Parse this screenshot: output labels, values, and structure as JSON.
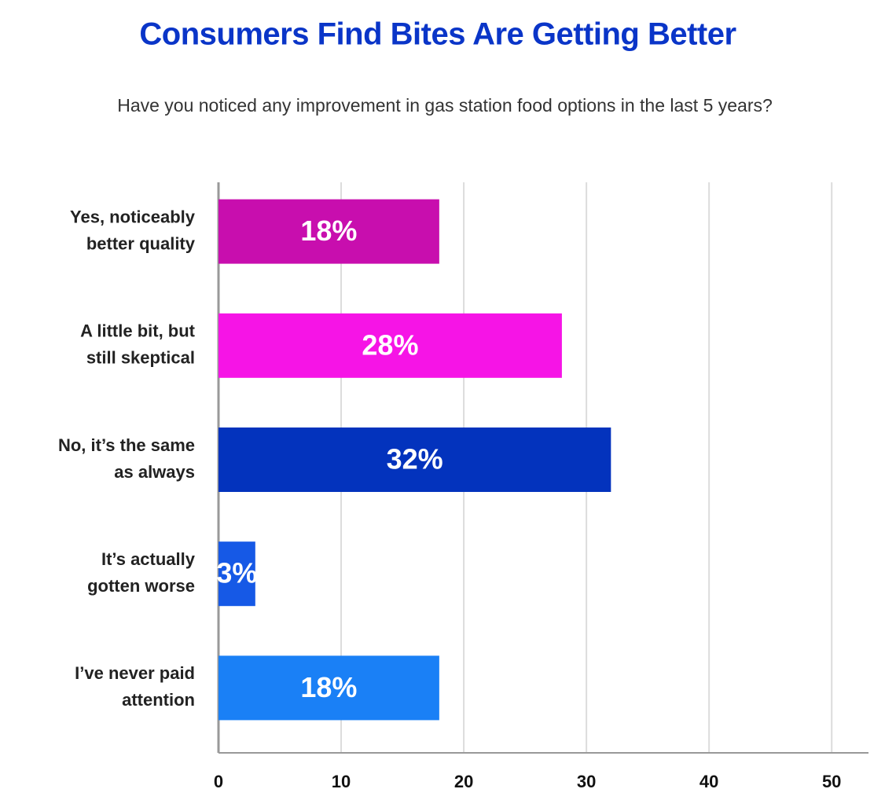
{
  "chart_data": {
    "type": "bar",
    "orientation": "horizontal",
    "title": "Consumers Find Bites Are Getting Better",
    "subtitle": "Have you noticed any improvement in gas station food options in the last 5 years?",
    "categories": [
      [
        "Yes, noticeably",
        "better quality"
      ],
      [
        "A little bit, but",
        "still skeptical"
      ],
      [
        "No, it’s the same",
        "as always"
      ],
      [
        "It’s actually",
        "gotten worse"
      ],
      [
        "I’ve never paid",
        "attention"
      ]
    ],
    "values": [
      18,
      28,
      32,
      3,
      18
    ],
    "value_labels": [
      "18%",
      "28%",
      "32%",
      "3%",
      "18%"
    ],
    "colors": [
      "#c80eae",
      "#f614e6",
      "#0333bd",
      "#1659e6",
      "#1a80f6"
    ],
    "xlim": [
      0,
      53
    ],
    "xticks": [
      0,
      10,
      20,
      30,
      40,
      50
    ],
    "grid": true
  }
}
